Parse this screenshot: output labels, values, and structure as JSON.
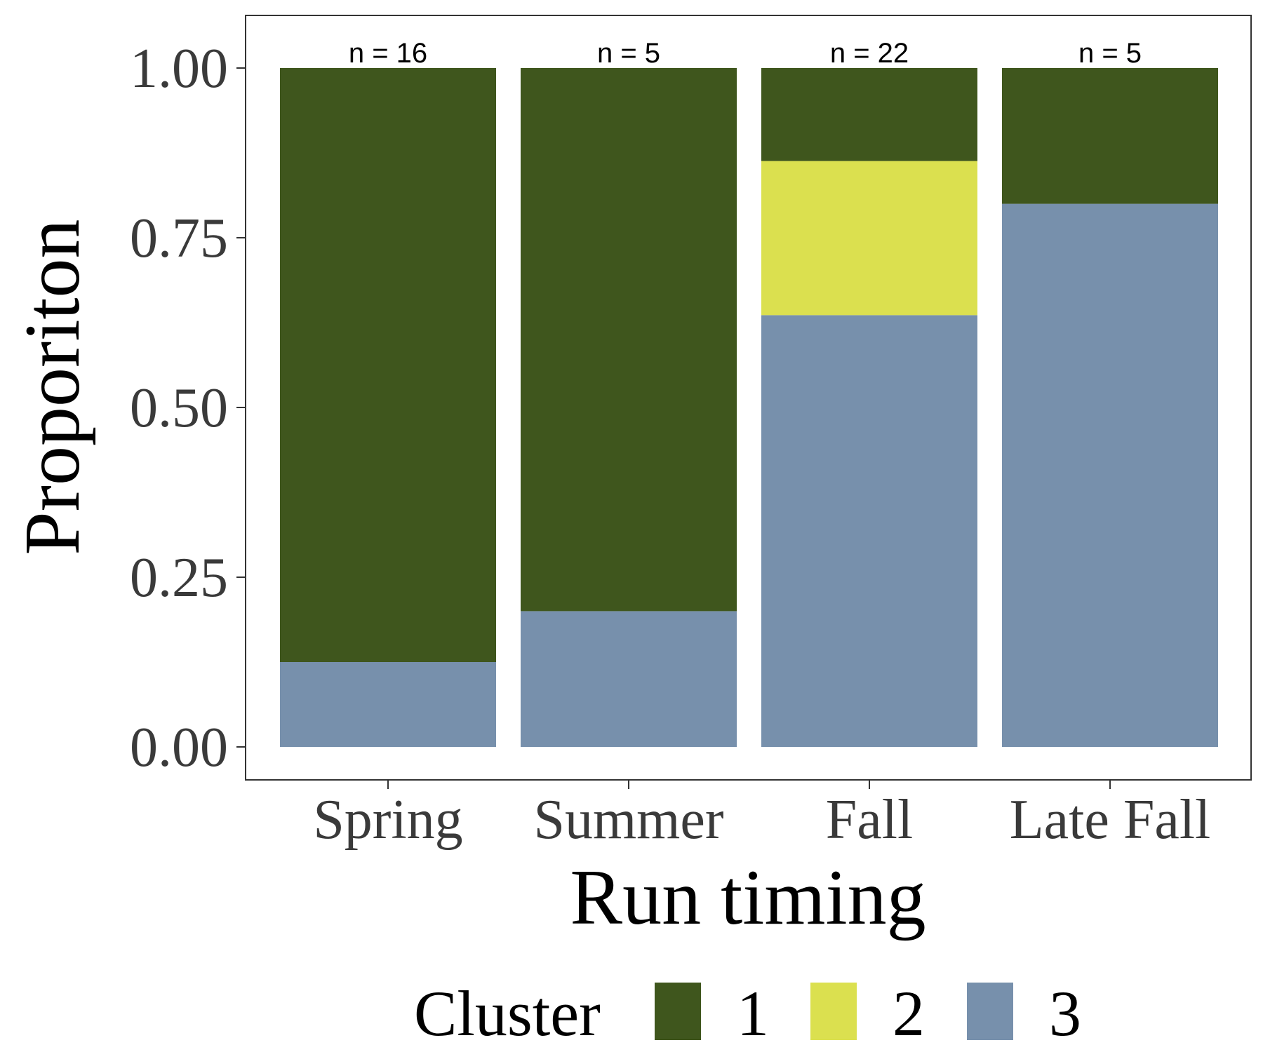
{
  "chart_data": {
    "type": "bar",
    "stacked": true,
    "categories": [
      "Spring",
      "Summer",
      "Fall",
      "Late Fall"
    ],
    "series": [
      {
        "name": "3",
        "values": [
          0.125,
          0.2,
          0.636,
          0.8
        ]
      },
      {
        "name": "2",
        "values": [
          0,
          0,
          0.227,
          0
        ]
      },
      {
        "name": "1",
        "values": [
          0.875,
          0.8,
          0.137,
          0.2
        ]
      }
    ],
    "bar_labels": [
      "n = 16",
      "n = 5",
      "n = 22",
      "n = 5"
    ],
    "xlabel": "Run timing",
    "ylabel": "Proporiton",
    "ylim": [
      0,
      1.075
    ],
    "yticks": [
      "0.00",
      "0.25",
      "0.50",
      "0.75",
      "1.00"
    ],
    "grid": false,
    "legend": {
      "title": "Cluster",
      "position": "bottom",
      "entries": [
        {
          "label": "1",
          "color": "#3f561d"
        },
        {
          "label": "2",
          "color": "#dbe04f"
        },
        {
          "label": "3",
          "color": "#7790ac"
        }
      ]
    },
    "colors": {
      "1": "#3f561d",
      "2": "#dbe04f",
      "3": "#7790ac"
    }
  }
}
